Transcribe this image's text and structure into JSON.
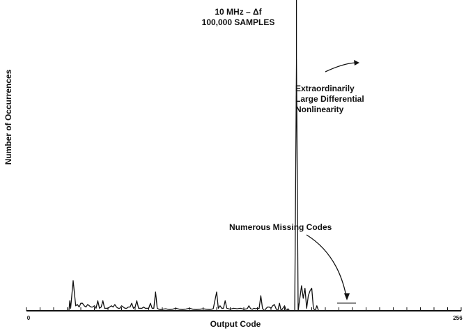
{
  "chart_data": {
    "type": "line",
    "title_lines": [
      "10 MHz – Δf",
      "100,000 SAMPLES"
    ],
    "xlabel": "Output Code",
    "ylabel": "Number of Occurrences",
    "x_ticks": [
      "0",
      "256"
    ],
    "xlim": [
      0,
      256
    ],
    "ylim": [
      0,
      100
    ],
    "annotations": [
      {
        "lines": [
          "Extraordinarily",
          "Large Differential",
          "Nonlinearity"
        ]
      },
      {
        "lines": [
          "Numerous Missing Codes"
        ]
      }
    ],
    "series": [
      {
        "points": [
          [
            0,
            0
          ],
          [
            25,
            0
          ],
          [
            25.5,
            4
          ],
          [
            26,
            1
          ],
          [
            27.5,
            12
          ],
          [
            29,
            2
          ],
          [
            30,
            2.5
          ],
          [
            31,
            1.5
          ],
          [
            32,
            3
          ],
          [
            33,
            3
          ],
          [
            34,
            2
          ],
          [
            35,
            1.5
          ],
          [
            36,
            2.5
          ],
          [
            37,
            2
          ],
          [
            38,
            1.5
          ],
          [
            39,
            1.5
          ],
          [
            40,
            2
          ],
          [
            41,
            1
          ],
          [
            42,
            4
          ],
          [
            43,
            1
          ],
          [
            44,
            1.5
          ],
          [
            45,
            4
          ],
          [
            46,
            1
          ],
          [
            47,
            1
          ],
          [
            48,
            1
          ],
          [
            49,
            1.5
          ],
          [
            50,
            2
          ],
          [
            51,
            1.5
          ],
          [
            52,
            2.5
          ],
          [
            53,
            1.5
          ],
          [
            54,
            1
          ],
          [
            55,
            1
          ],
          [
            56,
            2
          ],
          [
            57,
            1.5
          ],
          [
            58,
            1
          ],
          [
            59,
            1
          ],
          [
            60,
            1.5
          ],
          [
            61,
            1.5
          ],
          [
            62,
            3
          ],
          [
            63,
            1
          ],
          [
            64,
            1.5
          ],
          [
            65,
            4
          ],
          [
            66,
            1
          ],
          [
            67,
            1
          ],
          [
            68,
            1
          ],
          [
            69,
            1.5
          ],
          [
            70,
            1
          ],
          [
            71,
            1
          ],
          [
            72,
            1
          ],
          [
            73,
            3
          ],
          [
            74,
            1
          ],
          [
            75,
            1
          ],
          [
            76,
            7.5
          ],
          [
            77,
            1
          ],
          [
            78,
            0.6
          ],
          [
            79,
            0.5
          ],
          [
            80,
            0.6
          ],
          [
            82,
            0.8
          ],
          [
            84,
            0.5
          ],
          [
            86,
            0.6
          ],
          [
            88,
            1
          ],
          [
            90,
            0.6
          ],
          [
            92,
            0.5
          ],
          [
            94,
            0.7
          ],
          [
            96,
            1
          ],
          [
            98,
            0.6
          ],
          [
            100,
            0.5
          ],
          [
            102,
            0.6
          ],
          [
            104,
            0.8
          ],
          [
            106,
            0.6
          ],
          [
            108,
            0.5
          ],
          [
            110,
            0.8
          ],
          [
            112,
            7.5
          ],
          [
            113,
            1
          ],
          [
            114,
            2
          ],
          [
            115,
            1
          ],
          [
            116,
            1
          ],
          [
            117,
            4
          ],
          [
            118,
            1
          ],
          [
            119,
            0.8
          ],
          [
            120,
            0.6
          ],
          [
            122,
            1
          ],
          [
            124,
            0.8
          ],
          [
            126,
            1
          ],
          [
            128,
            0.6
          ],
          [
            130,
            0.8
          ],
          [
            131,
            2
          ],
          [
            132,
            0.8
          ],
          [
            133,
            0.6
          ],
          [
            134,
            1
          ],
          [
            135,
            0.8
          ],
          [
            136,
            1
          ],
          [
            137,
            0.8
          ],
          [
            138,
            6
          ],
          [
            139,
            1
          ],
          [
            140,
            0
          ],
          [
            141,
            0.8
          ],
          [
            142,
            1.5
          ],
          [
            143,
            1.5
          ],
          [
            144,
            1
          ],
          [
            145,
            2
          ],
          [
            146,
            2.5
          ],
          [
            147,
            0.8
          ],
          [
            148,
            0
          ],
          [
            149,
            3
          ],
          [
            150,
            0
          ],
          [
            151,
            1
          ],
          [
            152,
            2
          ],
          [
            153,
            0
          ],
          [
            154,
            0.8
          ],
          [
            155,
            0
          ],
          [
            158,
            0
          ],
          [
            159,
            100
          ],
          [
            160,
            0
          ],
          [
            161,
            5
          ],
          [
            162,
            10
          ],
          [
            163,
            5
          ],
          [
            164,
            9
          ],
          [
            165,
            1
          ],
          [
            166,
            6
          ],
          [
            167,
            8
          ],
          [
            168,
            9
          ],
          [
            169,
            1
          ],
          [
            170,
            0
          ],
          [
            171,
            2
          ],
          [
            172,
            0
          ],
          [
            256,
            0
          ]
        ]
      }
    ]
  }
}
